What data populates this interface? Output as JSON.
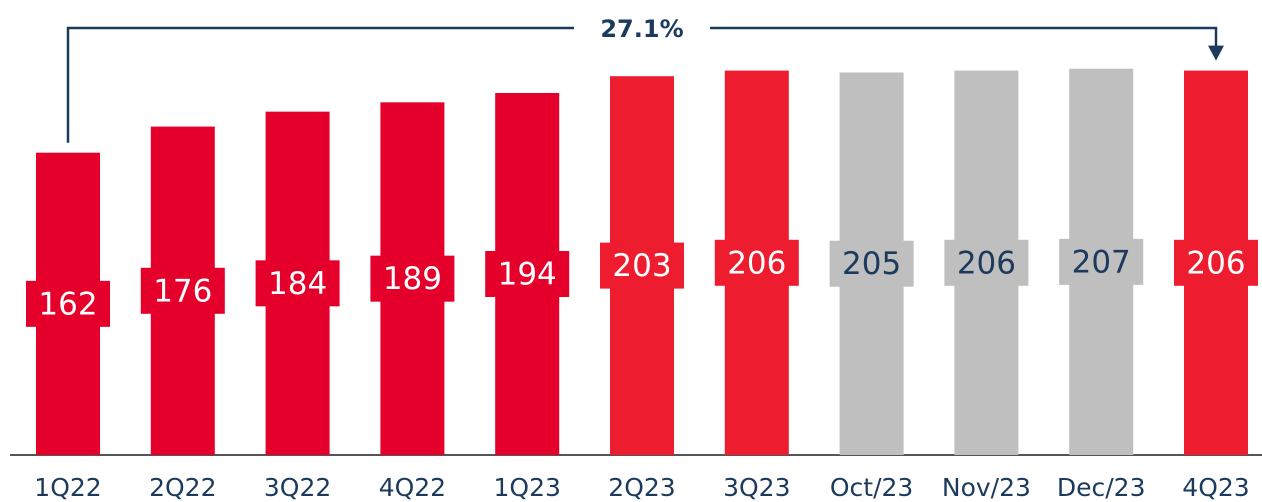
{
  "chart_data": {
    "type": "bar",
    "annotation": "27.1%",
    "categories": [
      "1Q22",
      "2Q22",
      "3Q22",
      "4Q22",
      "1Q23",
      "2Q23",
      "3Q23",
      "Oct/23",
      "Nov/23",
      "Dec/23",
      "4Q23"
    ],
    "values": [
      162,
      176,
      184,
      189,
      194,
      203,
      206,
      205,
      206,
      207,
      206
    ],
    "colors": [
      "#e4002b",
      "#e4002b",
      "#e4002b",
      "#e4002b",
      "#e4002b",
      "#ed1c2e",
      "#ed1c2e",
      "#bfbfbf",
      "#bfbfbf",
      "#bfbfbf",
      "#ed1c2e"
    ],
    "label_colors": [
      "#ffffff",
      "#ffffff",
      "#ffffff",
      "#ffffff",
      "#ffffff",
      "#ffffff",
      "#ffffff",
      "#1b3a5c",
      "#1b3a5c",
      "#1b3a5c",
      "#ffffff"
    ]
  }
}
